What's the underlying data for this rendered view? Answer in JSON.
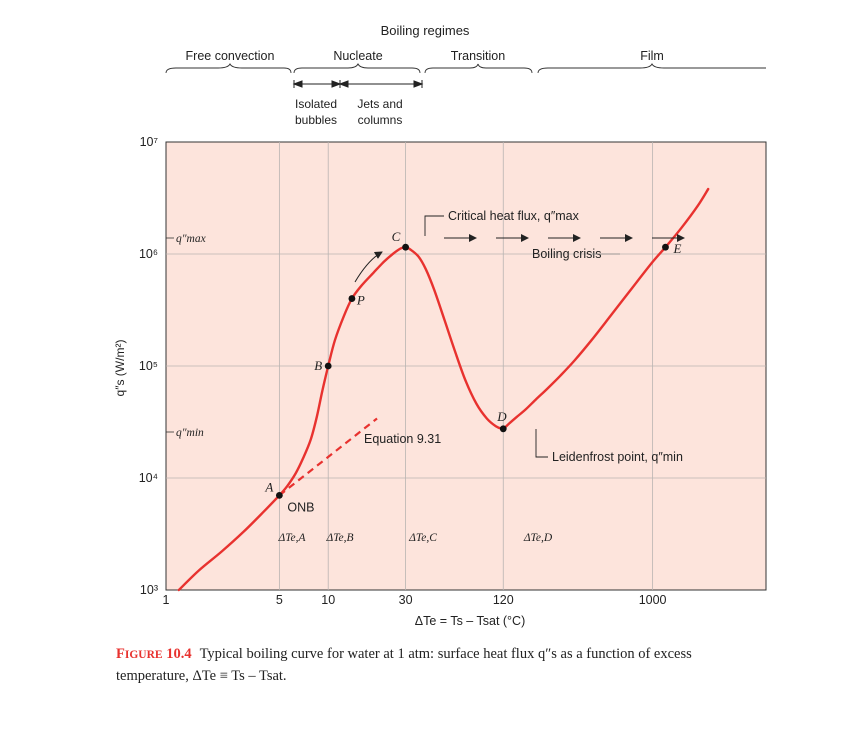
{
  "chart_data": {
    "type": "line",
    "title": "Boiling regimes",
    "xlabel": "ΔTe = Ts – Tsat (°C)",
    "ylabel": "q″s (W/m²)",
    "x_scale": "log",
    "y_scale": "log",
    "xlim": [
      1,
      5000
    ],
    "ylim": [
      1000,
      10000000
    ],
    "x_ticks": [
      1,
      5,
      10,
      30,
      120,
      1000
    ],
    "x_tick_labels": [
      "1",
      "5",
      "10",
      "30",
      "120",
      "1000"
    ],
    "y_ticks": [
      1000,
      10000,
      100000,
      1000000,
      10000000
    ],
    "y_tick_labels": [
      "10³",
      "10⁴",
      "10⁵",
      "10⁶",
      "10⁷"
    ],
    "grid": true,
    "background": "#fde4dc",
    "line_color": "#e8322f",
    "series": [
      {
        "name": "",
        "x": [
          1.2,
          1.6,
          2.2,
          3,
          4,
          5,
          5.6,
          6.3,
          7,
          7.8,
          8.5,
          9.2,
          10,
          11,
          12.5,
          14,
          16,
          19,
          22,
          25,
          28,
          30,
          32,
          36,
          40,
          45,
          52,
          60,
          70,
          82,
          95,
          108,
          118,
          122,
          130,
          145,
          165,
          190,
          225,
          270,
          330,
          420,
          550,
          750,
          1000,
          1200,
          1500,
          1900,
          2200
        ],
        "y": [
          1000,
          1500,
          2200,
          3300,
          5000,
          7000,
          8500,
          11000,
          15000,
          22000,
          35000,
          60000,
          100000,
          170000,
          280000,
          400000,
          520000,
          680000,
          850000,
          1000000,
          1120000,
          1150000,
          1100000,
          950000,
          730000,
          480000,
          260000,
          140000,
          75000,
          46000,
          34000,
          29000,
          27500,
          28000,
          30500,
          35000,
          41000,
          50000,
          63000,
          82000,
          112000,
          170000,
          280000,
          500000,
          850000,
          1150000,
          1700000,
          2700000,
          3800000
        ]
      }
    ],
    "dashed_extension": {
      "label": "Equation 9.31",
      "x": [
        5,
        20
      ],
      "y": [
        7000,
        34000
      ]
    },
    "points": [
      {
        "label": "A",
        "x": 5,
        "y": 7000,
        "note": "ONB"
      },
      {
        "label": "B",
        "x": 10,
        "y": 100000
      },
      {
        "label": "P",
        "x": 14,
        "y": 400000
      },
      {
        "label": "C",
        "x": 30,
        "y": 1150000
      },
      {
        "label": "D",
        "x": 120,
        "y": 27500
      },
      {
        "label": "E",
        "x": 1200,
        "y": 1150000
      }
    ],
    "annotations": {
      "chf": "Critical heat flux, q″max",
      "crisis": "Boiling crisis",
      "leiden": "Leidenfrost point, q″min",
      "qmax": "q″max",
      "qmin": "q″min",
      "dte_a": "ΔTe,A",
      "dte_b": "ΔTe,B",
      "dte_c": "ΔTe,C",
      "dte_d": "ΔTe,D"
    },
    "regimes": {
      "free": "Free convection",
      "nucleate": "Nucleate",
      "transition": "Transition",
      "film": "Film",
      "isolated_1": "Isolated",
      "isolated_2": "bubbles",
      "jets_1": "Jets and",
      "jets_2": "columns"
    }
  },
  "caption": {
    "fig_label_first": "F",
    "fig_label_rest": "IGURE",
    "fig_number": "10.4",
    "text": "Typical boiling curve for water at 1 atm: surface heat flux q″s as a function of excess temperature, ΔTe ≡ Ts – Tsat."
  }
}
